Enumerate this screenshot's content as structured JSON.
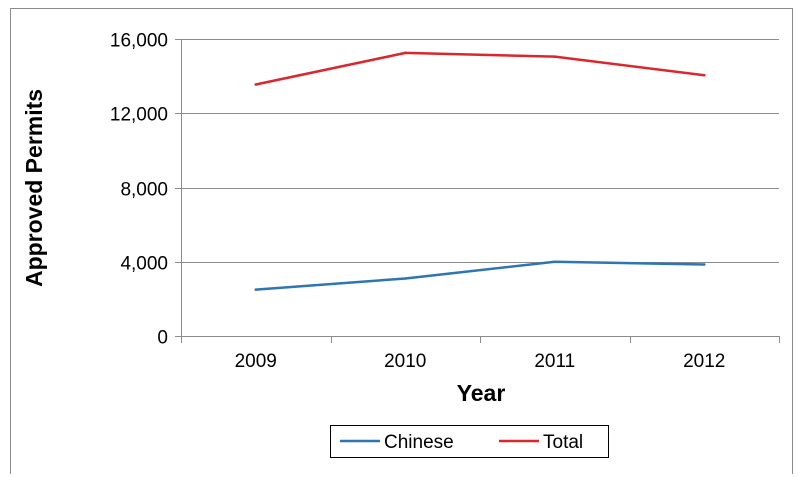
{
  "chart_data": {
    "type": "line",
    "title": "",
    "xlabel": "Year",
    "ylabel": "Approved Permits",
    "categories": [
      "2009",
      "2010",
      "2011",
      "2012"
    ],
    "ylim": [
      0,
      16000
    ],
    "yticks": [
      0,
      4000,
      8000,
      12000,
      16000
    ],
    "ytick_labels": [
      "0",
      "4,000",
      "8,000",
      "12,000",
      "16,000"
    ],
    "grid": true,
    "legend": "bottom",
    "series": [
      {
        "name": "Chinese",
        "color": "#2e75b6",
        "values": [
          2500,
          3100,
          4000,
          3850
        ]
      },
      {
        "name": "Total",
        "color": "#d9272e",
        "values": [
          13550,
          15250,
          15050,
          14050
        ]
      }
    ]
  }
}
